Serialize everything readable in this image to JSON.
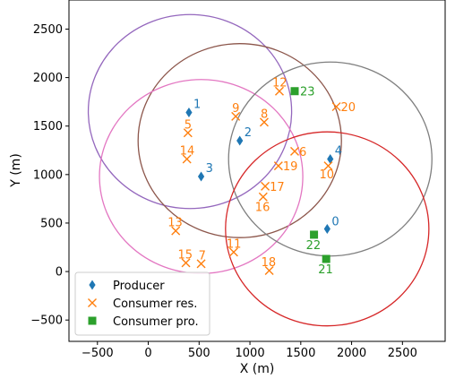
{
  "chart_data": {
    "type": "scatter",
    "title": "",
    "xlabel": "X (m)",
    "ylabel": "Y (m)",
    "xlim": [
      -780,
      2920
    ],
    "ylim": [
      -720,
      2800
    ],
    "xticks": [
      -500,
      0,
      500,
      1000,
      1500,
      2000,
      2500
    ],
    "yticks": [
      -500,
      0,
      500,
      1000,
      1500,
      2000,
      2500
    ],
    "grid": false,
    "legend_position": "lower-left",
    "colors": {
      "producer": "#1f77b4",
      "consumer_res": "#ff7f0e",
      "consumer_pro": "#2ca02c"
    },
    "series": [
      {
        "name": "Producer",
        "marker": "diamond",
        "points": [
          {
            "label": "0",
            "x": 1760,
            "y": 440
          },
          {
            "label": "1",
            "x": 400,
            "y": 1640
          },
          {
            "label": "2",
            "x": 900,
            "y": 1350
          },
          {
            "label": "3",
            "x": 520,
            "y": 980
          },
          {
            "label": "4",
            "x": 1790,
            "y": 1160
          }
        ]
      },
      {
        "name": "Consumer res.",
        "marker": "x",
        "points": [
          {
            "label": "5",
            "x": 390,
            "y": 1430
          },
          {
            "label": "6",
            "x": 1440,
            "y": 1240
          },
          {
            "label": "7",
            "x": 520,
            "y": 80
          },
          {
            "label": "8",
            "x": 1140,
            "y": 1540
          },
          {
            "label": "9",
            "x": 860,
            "y": 1600
          },
          {
            "label": "10",
            "x": 1770,
            "y": 1090
          },
          {
            "label": "11",
            "x": 840,
            "y": 200
          },
          {
            "label": "12",
            "x": 1290,
            "y": 1860
          },
          {
            "label": "13",
            "x": 270,
            "y": 420
          },
          {
            "label": "14",
            "x": 380,
            "y": 1160
          },
          {
            "label": "15",
            "x": 370,
            "y": 90
          },
          {
            "label": "16",
            "x": 1130,
            "y": 770
          },
          {
            "label": "17",
            "x": 1150,
            "y": 880
          },
          {
            "label": "18",
            "x": 1190,
            "y": 10
          },
          {
            "label": "19",
            "x": 1280,
            "y": 1090
          },
          {
            "label": "20",
            "x": 1850,
            "y": 1700
          }
        ]
      },
      {
        "name": "Consumer pro.",
        "marker": "square",
        "points": [
          {
            "label": "21",
            "x": 1750,
            "y": 130
          },
          {
            "label": "22",
            "x": 1630,
            "y": 380
          },
          {
            "label": "23",
            "x": 1440,
            "y": 1860
          }
        ]
      }
    ],
    "circles": [
      {
        "color": "#9467bd",
        "cx": 410,
        "cy": 1650,
        "r": 1000
      },
      {
        "color": "#8c564b",
        "cx": 900,
        "cy": 1350,
        "r": 1000
      },
      {
        "color": "#e377c2",
        "cx": 520,
        "cy": 980,
        "r": 1000
      },
      {
        "color": "#7f7f7f",
        "cx": 1790,
        "cy": 1160,
        "r": 1000
      },
      {
        "color": "#d62728",
        "cx": 1760,
        "cy": 440,
        "r": 1000
      }
    ]
  }
}
